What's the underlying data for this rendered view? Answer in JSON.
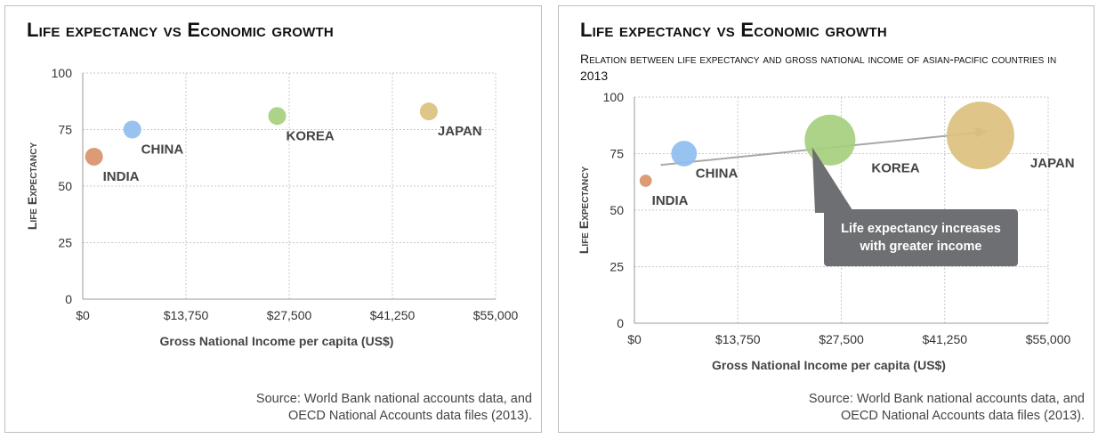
{
  "colors": {
    "grid": "#c8c8c8",
    "axis": "#9a9a9a",
    "india": "#d8936a",
    "china": "#8fbdee",
    "korea": "#a6cf7e",
    "japan": "#dcc07d",
    "arrow": "#a7a7a7",
    "callout": "#6e6f72"
  },
  "source": {
    "line1": "Source: World Bank national accounts data, and",
    "line2": "OECD National Accounts data files (2013)."
  },
  "chart_data": [
    {
      "type": "scatter",
      "title": "Life expectancy vs Economic growth",
      "xlabel": "Gross National Income per capita (US$)",
      "ylabel": "Life Expectancy",
      "xlim": [
        0,
        55000
      ],
      "ylim": [
        0,
        100
      ],
      "xticks": [
        "$0",
        "$13,750",
        "$27,500",
        "$41,250",
        "$55,000"
      ],
      "yticks": [
        "0",
        "25",
        "50",
        "75",
        "100"
      ],
      "grid": true,
      "points": [
        {
          "label": "INDIA",
          "x": 1500,
          "y": 63,
          "color_key": "india"
        },
        {
          "label": "CHINA",
          "x": 6600,
          "y": 75,
          "color_key": "china"
        },
        {
          "label": "KOREA",
          "x": 25900,
          "y": 81,
          "color_key": "korea"
        },
        {
          "label": "JAPAN",
          "x": 46100,
          "y": 83,
          "color_key": "japan"
        }
      ]
    },
    {
      "type": "scatter",
      "title": "Life expectancy vs Economic growth",
      "subtitle": "Relation between life expectancy and gross national income of asian-pacific countries in 2013",
      "xlabel": "Gross National Income per capita (US$)",
      "ylabel": "Life Expectancy",
      "xlim": [
        0,
        55000
      ],
      "ylim": [
        0,
        100
      ],
      "xticks": [
        "$0",
        "$13,750",
        "$27,500",
        "$41,250",
        "$55,000"
      ],
      "yticks": [
        "0",
        "25",
        "50",
        "75",
        "100"
      ],
      "grid": true,
      "bubble_size_by": "x",
      "points": [
        {
          "label": "INDIA",
          "x": 1500,
          "y": 63,
          "color_key": "india"
        },
        {
          "label": "CHINA",
          "x": 6600,
          "y": 75,
          "color_key": "china"
        },
        {
          "label": "KOREA",
          "x": 26000,
          "y": 81,
          "color_key": "korea"
        },
        {
          "label": "JAPAN",
          "x": 46000,
          "y": 83,
          "color_key": "japan"
        }
      ],
      "trend_arrow": {
        "from": {
          "x": 3500,
          "y": 70
        },
        "to": {
          "x": 47000,
          "y": 85
        }
      },
      "annotation": "Life expectancy increases with greater income"
    }
  ]
}
